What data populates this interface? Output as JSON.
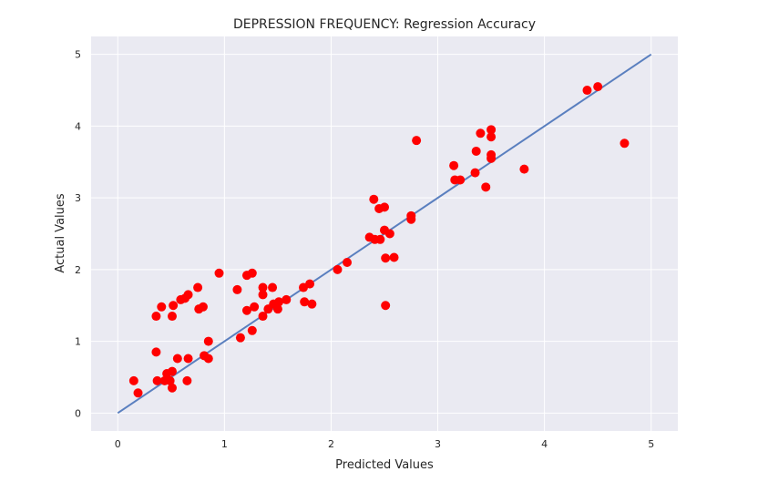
{
  "chart_data": {
    "type": "scatter",
    "title": "DEPRESSION FREQUENCY: Regression Accuracy",
    "xlabel": "Predicted Values",
    "ylabel": "Actual Values",
    "xlim": [
      -0.25,
      5.25
    ],
    "ylim": [
      -0.25,
      5.25
    ],
    "xticks": [
      0,
      1,
      2,
      3,
      4,
      5
    ],
    "yticks": [
      0,
      1,
      2,
      3,
      4,
      5
    ],
    "grid": true,
    "background_color": "#eaeaf2",
    "point_color": "#ff0000",
    "line_color": "#5a7fbf",
    "reference_line": {
      "x": [
        0,
        5
      ],
      "y": [
        0,
        5
      ]
    },
    "points": [
      {
        "x": 0.15,
        "y": 0.45
      },
      {
        "x": 0.19,
        "y": 0.28
      },
      {
        "x": 0.36,
        "y": 1.35
      },
      {
        "x": 0.36,
        "y": 0.85
      },
      {
        "x": 0.37,
        "y": 0.45
      },
      {
        "x": 0.41,
        "y": 1.48
      },
      {
        "x": 0.44,
        "y": 0.45
      },
      {
        "x": 0.46,
        "y": 0.55
      },
      {
        "x": 0.49,
        "y": 0.45
      },
      {
        "x": 0.51,
        "y": 0.58
      },
      {
        "x": 0.51,
        "y": 0.35
      },
      {
        "x": 0.51,
        "y": 1.35
      },
      {
        "x": 0.52,
        "y": 1.5
      },
      {
        "x": 0.56,
        "y": 0.76
      },
      {
        "x": 0.59,
        "y": 1.58
      },
      {
        "x": 0.63,
        "y": 1.6
      },
      {
        "x": 0.65,
        "y": 0.45
      },
      {
        "x": 0.66,
        "y": 1.65
      },
      {
        "x": 0.66,
        "y": 0.76
      },
      {
        "x": 0.75,
        "y": 1.75
      },
      {
        "x": 0.76,
        "y": 1.45
      },
      {
        "x": 0.8,
        "y": 1.48
      },
      {
        "x": 0.81,
        "y": 0.8
      },
      {
        "x": 0.85,
        "y": 1.0
      },
      {
        "x": 0.85,
        "y": 0.76
      },
      {
        "x": 0.95,
        "y": 1.95
      },
      {
        "x": 1.12,
        "y": 1.72
      },
      {
        "x": 1.15,
        "y": 1.05
      },
      {
        "x": 1.21,
        "y": 1.92
      },
      {
        "x": 1.21,
        "y": 1.43
      },
      {
        "x": 1.26,
        "y": 1.95
      },
      {
        "x": 1.26,
        "y": 1.15
      },
      {
        "x": 1.28,
        "y": 1.48
      },
      {
        "x": 1.36,
        "y": 1.75
      },
      {
        "x": 1.36,
        "y": 1.65
      },
      {
        "x": 1.36,
        "y": 1.35
      },
      {
        "x": 1.41,
        "y": 1.45
      },
      {
        "x": 1.45,
        "y": 1.75
      },
      {
        "x": 1.46,
        "y": 1.52
      },
      {
        "x": 1.5,
        "y": 1.45
      },
      {
        "x": 1.51,
        "y": 1.55
      },
      {
        "x": 1.58,
        "y": 1.58
      },
      {
        "x": 1.74,
        "y": 1.75
      },
      {
        "x": 1.75,
        "y": 1.55
      },
      {
        "x": 1.8,
        "y": 1.8
      },
      {
        "x": 1.82,
        "y": 1.52
      },
      {
        "x": 2.06,
        "y": 2.0
      },
      {
        "x": 2.15,
        "y": 2.1
      },
      {
        "x": 2.36,
        "y": 2.45
      },
      {
        "x": 2.4,
        "y": 2.98
      },
      {
        "x": 2.41,
        "y": 2.42
      },
      {
        "x": 2.45,
        "y": 2.85
      },
      {
        "x": 2.46,
        "y": 2.42
      },
      {
        "x": 2.5,
        "y": 2.87
      },
      {
        "x": 2.5,
        "y": 2.55
      },
      {
        "x": 2.51,
        "y": 2.16
      },
      {
        "x": 2.51,
        "y": 1.5
      },
      {
        "x": 2.55,
        "y": 2.5
      },
      {
        "x": 2.59,
        "y": 2.17
      },
      {
        "x": 2.75,
        "y": 2.75
      },
      {
        "x": 2.75,
        "y": 2.7
      },
      {
        "x": 2.8,
        "y": 3.8
      },
      {
        "x": 3.15,
        "y": 3.45
      },
      {
        "x": 3.16,
        "y": 3.25
      },
      {
        "x": 3.21,
        "y": 3.25
      },
      {
        "x": 3.35,
        "y": 3.35
      },
      {
        "x": 3.36,
        "y": 3.65
      },
      {
        "x": 3.4,
        "y": 3.9
      },
      {
        "x": 3.45,
        "y": 3.15
      },
      {
        "x": 3.5,
        "y": 3.95
      },
      {
        "x": 3.5,
        "y": 3.85
      },
      {
        "x": 3.5,
        "y": 3.6
      },
      {
        "x": 3.5,
        "y": 3.55
      },
      {
        "x": 3.81,
        "y": 3.4
      },
      {
        "x": 4.4,
        "y": 4.5
      },
      {
        "x": 4.5,
        "y": 4.55
      },
      {
        "x": 4.75,
        "y": 3.76
      }
    ]
  }
}
